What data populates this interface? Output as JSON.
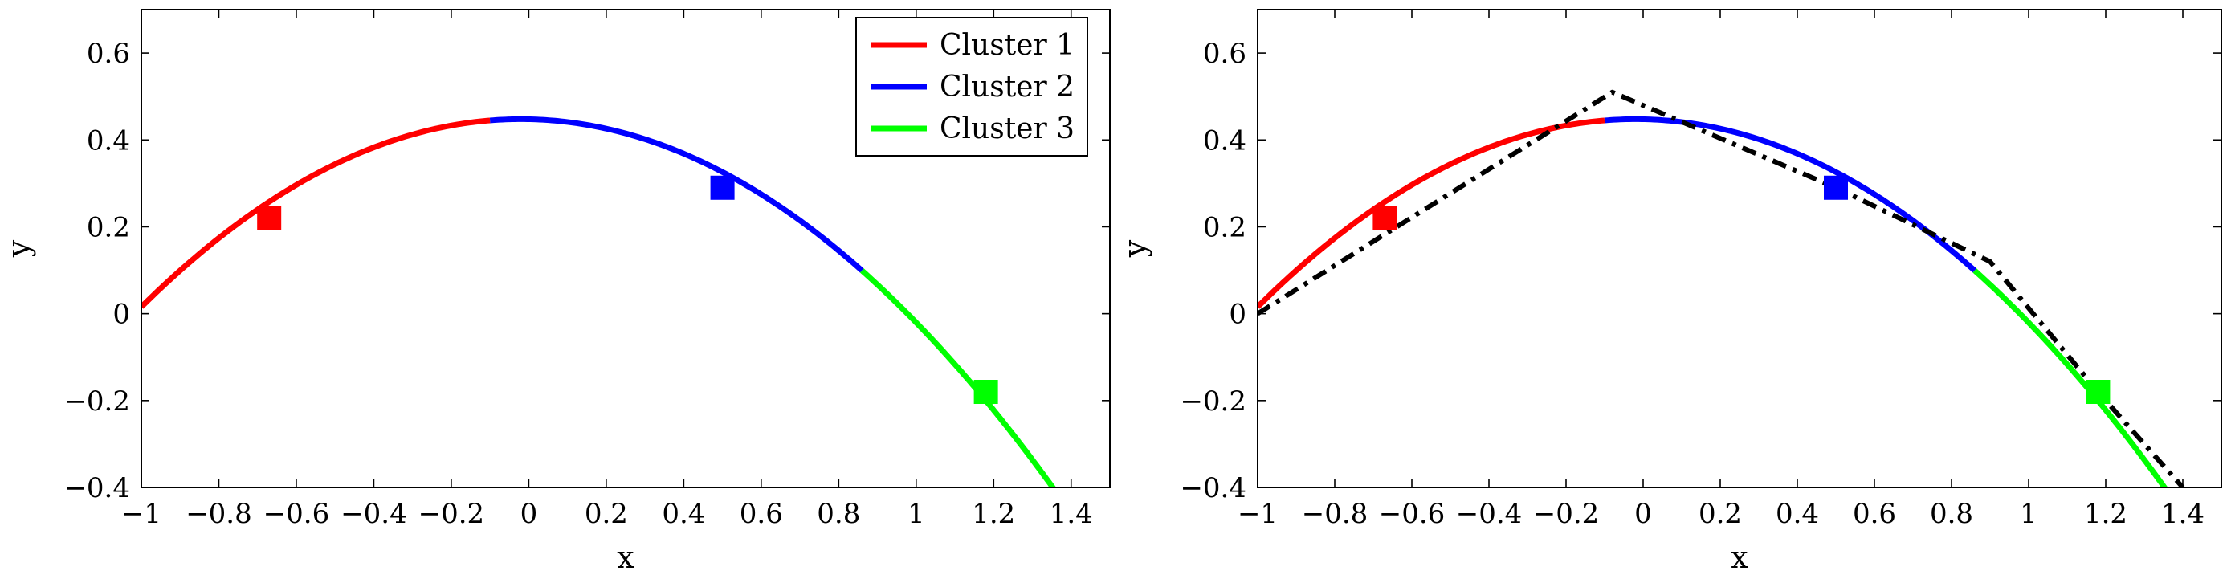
{
  "colors": {
    "cluster1": "#ff0000",
    "cluster2": "#0000ff",
    "cluster3": "#00ff00",
    "approximation": "#000000"
  },
  "chart_data": [
    {
      "type": "line",
      "xlabel": "x",
      "ylabel": "y",
      "xlim": [
        -1,
        1.5
      ],
      "ylim": [
        -0.4,
        0.7
      ],
      "xticks": [
        -1,
        -0.8,
        -0.6,
        -0.4,
        -0.2,
        0,
        0.2,
        0.4,
        0.6,
        0.8,
        1,
        1.2,
        1.4
      ],
      "xtick_labels": [
        "−1",
        "−0.8",
        "−0.6",
        "−0.4",
        "−0.2",
        "0",
        "0.2",
        "0.4",
        "0.6",
        "0.8",
        "1",
        "1.2",
        "1.4"
      ],
      "yticks": [
        -0.4,
        -0.2,
        0,
        0.2,
        0.4,
        0.6
      ],
      "ytick_labels": [
        "−0.4",
        "−0.2",
        "0",
        "0.2",
        "0.4",
        "0.6"
      ],
      "grid": false,
      "legend": "top-right",
      "curve": {
        "a": 0.45,
        "b": -0.02,
        "c": 0.4478
      },
      "series": [
        {
          "name": "Cluster 1",
          "color": "#ff0000",
          "x_range": [
            -1,
            -0.1
          ]
        },
        {
          "name": "Cluster 2",
          "color": "#0000ff",
          "x_range": [
            -0.1,
            0.86
          ]
        },
        {
          "name": "Cluster 3",
          "color": "#00ff00",
          "x_range": [
            0.86,
            1.4
          ]
        }
      ],
      "centers": [
        {
          "x": -0.67,
          "y": 0.22,
          "color": "#ff0000"
        },
        {
          "x": 0.5,
          "y": 0.29,
          "color": "#0000ff"
        },
        {
          "x": 1.18,
          "y": -0.18,
          "color": "#00ff00"
        }
      ]
    },
    {
      "type": "line",
      "xlabel": "x",
      "ylabel": "y",
      "xlim": [
        -1,
        1.5
      ],
      "ylim": [
        -0.4,
        0.7
      ],
      "xticks": [
        -1,
        -0.8,
        -0.6,
        -0.4,
        -0.2,
        0,
        0.2,
        0.4,
        0.6,
        0.8,
        1,
        1.2,
        1.4
      ],
      "xtick_labels": [
        "−1",
        "−0.8",
        "−0.6",
        "−0.4",
        "−0.2",
        "0",
        "0.2",
        "0.4",
        "0.6",
        "0.8",
        "1",
        "1.2",
        "1.4"
      ],
      "yticks": [
        -0.4,
        -0.2,
        0,
        0.2,
        0.4,
        0.6
      ],
      "ytick_labels": [
        "−0.4",
        "−0.2",
        "0",
        "0.2",
        "0.4",
        "0.6"
      ],
      "grid": false,
      "curve": {
        "a": 0.45,
        "b": -0.02,
        "c": 0.4478
      },
      "series": [
        {
          "color": "#ff0000",
          "x_range": [
            -1,
            -0.1
          ]
        },
        {
          "color": "#0000ff",
          "x_range": [
            -0.1,
            0.86
          ]
        },
        {
          "color": "#00ff00",
          "x_range": [
            0.86,
            1.4
          ]
        }
      ],
      "centers": [
        {
          "x": -0.67,
          "y": 0.22,
          "color": "#ff0000"
        },
        {
          "x": 0.5,
          "y": 0.29,
          "color": "#0000ff"
        },
        {
          "x": 1.18,
          "y": -0.18,
          "color": "#00ff00"
        }
      ],
      "approximation": {
        "color": "#000000",
        "style": "dash-dot",
        "x": [
          -1,
          -0.08,
          0.5,
          0.9,
          1.18,
          1.4
        ],
        "y": [
          0.0,
          0.51,
          0.29,
          0.12,
          -0.18,
          -0.4
        ]
      }
    }
  ]
}
